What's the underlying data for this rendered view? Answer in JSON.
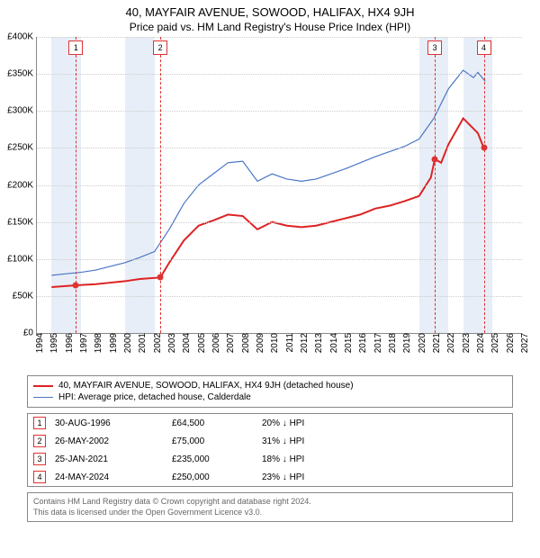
{
  "title": "40, MAYFAIR AVENUE, SOWOOD, HALIFAX, HX4 9JH",
  "subtitle": "Price paid vs. HM Land Registry's House Price Index (HPI)",
  "chart": {
    "type": "line",
    "background_color": "#ffffff",
    "grid_color": "#cccccc",
    "band_color": "#e8eef7",
    "axis_color": "#888888",
    "x": {
      "min": 1994,
      "max": 2027,
      "ticks": [
        1994,
        1995,
        1996,
        1997,
        1998,
        1999,
        2000,
        2001,
        2002,
        2003,
        2004,
        2005,
        2006,
        2007,
        2008,
        2009,
        2010,
        2011,
        2012,
        2013,
        2014,
        2015,
        2016,
        2017,
        2018,
        2019,
        2020,
        2021,
        2022,
        2023,
        2024,
        2025,
        2026,
        2027
      ]
    },
    "y": {
      "min": 0,
      "max": 400000,
      "ticks": [
        0,
        50000,
        100000,
        150000,
        200000,
        250000,
        300000,
        350000,
        400000
      ],
      "labels": [
        "£0",
        "£50K",
        "£100K",
        "£150K",
        "£200K",
        "£250K",
        "£300K",
        "£350K",
        "£400K"
      ]
    },
    "bands": [
      [
        1995,
        1997
      ],
      [
        2000,
        2002
      ],
      [
        2020,
        2022
      ],
      [
        2023,
        2025
      ]
    ],
    "vlines": [
      1996.66,
      2002.4,
      2021.07,
      2024.4
    ],
    "markers": [
      {
        "n": "1",
        "x": 1996.66,
        "price": 64500,
        "date": "30-AUG-1996",
        "pct": "20% ↓ HPI"
      },
      {
        "n": "2",
        "x": 2002.4,
        "price": 75000,
        "date": "26-MAY-2002",
        "pct": "31% ↓ HPI"
      },
      {
        "n": "3",
        "x": 2021.07,
        "price": 235000,
        "date": "25-JAN-2021",
        "pct": "18% ↓ HPI"
      },
      {
        "n": "4",
        "x": 2024.4,
        "price": 250000,
        "date": "24-MAY-2024",
        "pct": "23% ↓ HPI"
      }
    ],
    "series": [
      {
        "name": "property",
        "color": "#dd2222",
        "width": 2,
        "label": "40, MAYFAIR AVENUE, SOWOOD, HALIFAX, HX4 9JH (detached house)",
        "points": [
          [
            1995,
            62000
          ],
          [
            1996.66,
            64500
          ],
          [
            1998,
            66000
          ],
          [
            1999,
            68000
          ],
          [
            2000,
            70000
          ],
          [
            2001,
            73000
          ],
          [
            2002.4,
            75000
          ],
          [
            2003,
            95000
          ],
          [
            2004,
            125000
          ],
          [
            2005,
            145000
          ],
          [
            2006,
            152000
          ],
          [
            2007,
            160000
          ],
          [
            2008,
            158000
          ],
          [
            2009,
            140000
          ],
          [
            2010,
            150000
          ],
          [
            2011,
            145000
          ],
          [
            2012,
            143000
          ],
          [
            2013,
            145000
          ],
          [
            2014,
            150000
          ],
          [
            2015,
            155000
          ],
          [
            2016,
            160000
          ],
          [
            2017,
            168000
          ],
          [
            2018,
            172000
          ],
          [
            2019,
            178000
          ],
          [
            2020,
            185000
          ],
          [
            2020.8,
            210000
          ],
          [
            2021.07,
            235000
          ],
          [
            2021.5,
            230000
          ],
          [
            2022,
            255000
          ],
          [
            2023,
            290000
          ],
          [
            2023.5,
            280000
          ],
          [
            2024,
            270000
          ],
          [
            2024.4,
            250000
          ]
        ]
      },
      {
        "name": "hpi",
        "color": "#4a76c7",
        "width": 1.2,
        "label": "HPI: Average price, detached house, Calderdale",
        "points": [
          [
            1995,
            78000
          ],
          [
            1996,
            80000
          ],
          [
            1997,
            82000
          ],
          [
            1998,
            85000
          ],
          [
            1999,
            90000
          ],
          [
            2000,
            95000
          ],
          [
            2001,
            102000
          ],
          [
            2002,
            110000
          ],
          [
            2003,
            140000
          ],
          [
            2004,
            175000
          ],
          [
            2005,
            200000
          ],
          [
            2006,
            215000
          ],
          [
            2007,
            230000
          ],
          [
            2008,
            232000
          ],
          [
            2009,
            205000
          ],
          [
            2010,
            215000
          ],
          [
            2011,
            208000
          ],
          [
            2012,
            205000
          ],
          [
            2013,
            208000
          ],
          [
            2014,
            215000
          ],
          [
            2015,
            222000
          ],
          [
            2016,
            230000
          ],
          [
            2017,
            238000
          ],
          [
            2018,
            245000
          ],
          [
            2019,
            252000
          ],
          [
            2020,
            262000
          ],
          [
            2021,
            290000
          ],
          [
            2022,
            330000
          ],
          [
            2023,
            355000
          ],
          [
            2023.7,
            345000
          ],
          [
            2024,
            352000
          ],
          [
            2024.5,
            340000
          ]
        ]
      }
    ]
  },
  "legend": [
    {
      "color": "#dd2222",
      "width": 2,
      "key": "chart.series.0.label"
    },
    {
      "color": "#4a76c7",
      "width": 1.2,
      "key": "chart.series.1.label"
    }
  ],
  "footer_line1": "Contains HM Land Registry data © Crown copyright and database right 2024.",
  "footer_line2": "This data is licensed under the Open Government Licence v3.0."
}
